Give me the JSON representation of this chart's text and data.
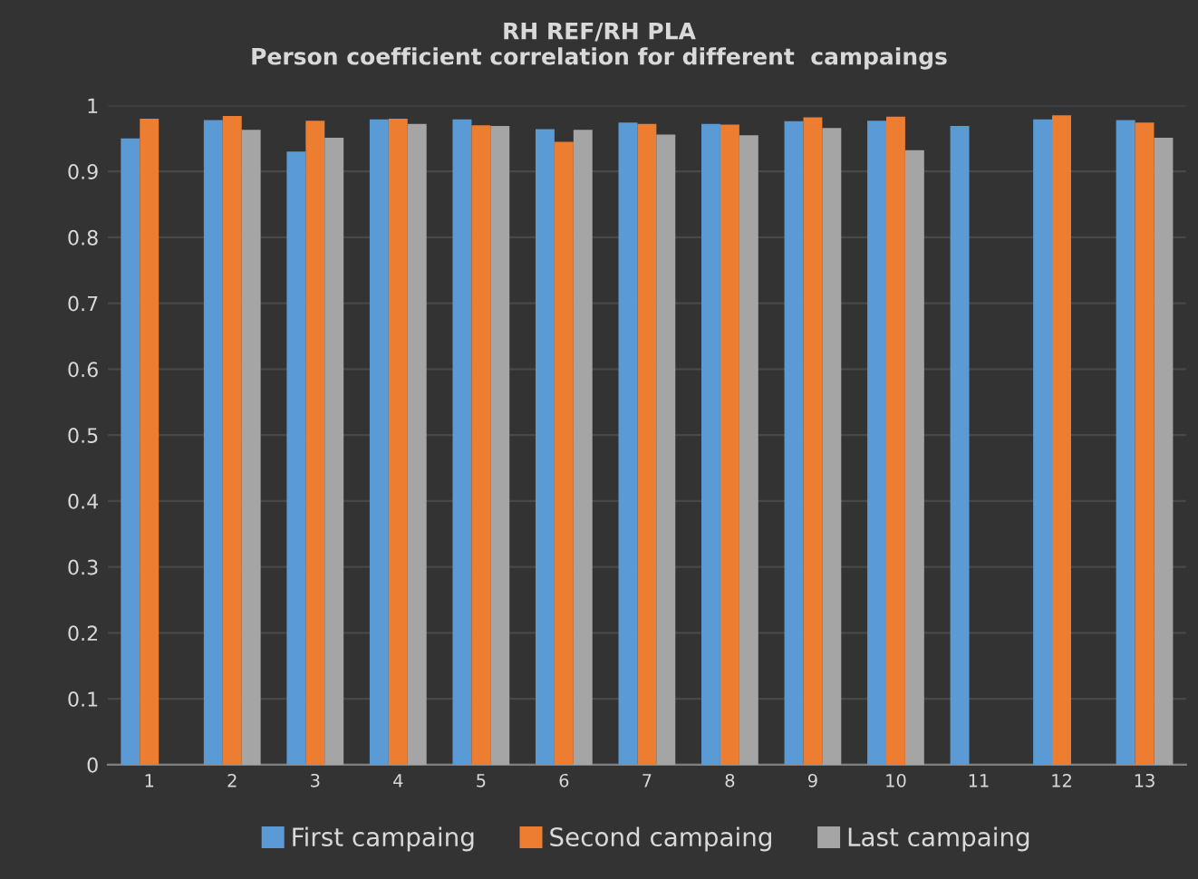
{
  "chart_data": {
    "type": "bar",
    "title": "RH REF/RH PLA\nPerson coefficient correlation for different  campaings",
    "categories": [
      "1",
      "2",
      "3",
      "4",
      "5",
      "6",
      "7",
      "8",
      "9",
      "10",
      "11",
      "12",
      "13"
    ],
    "series": [
      {
        "name": "First campaing",
        "color": "#5b9bd5",
        "values": [
          0.95,
          0.978,
          0.93,
          0.979,
          0.979,
          0.964,
          0.974,
          0.972,
          0.976,
          0.977,
          0.969,
          0.979,
          0.978
        ]
      },
      {
        "name": "Second campaing",
        "color": "#ed7d31",
        "values": [
          0.98,
          0.984,
          0.977,
          0.98,
          0.97,
          0.945,
          0.972,
          0.971,
          0.982,
          0.983,
          null,
          0.985,
          0.974
        ]
      },
      {
        "name": "Last campaing",
        "color": "#a5a5a5",
        "values": [
          null,
          0.963,
          0.951,
          0.972,
          0.969,
          0.963,
          0.956,
          0.955,
          0.966,
          0.932,
          null,
          null,
          0.951
        ]
      }
    ],
    "ylim": [
      0,
      1
    ],
    "yticks": [
      0,
      0.1,
      0.2,
      0.3,
      0.4,
      0.5,
      0.6,
      0.7,
      0.8,
      0.9,
      1
    ],
    "grid": "y",
    "legend": "bottom"
  }
}
